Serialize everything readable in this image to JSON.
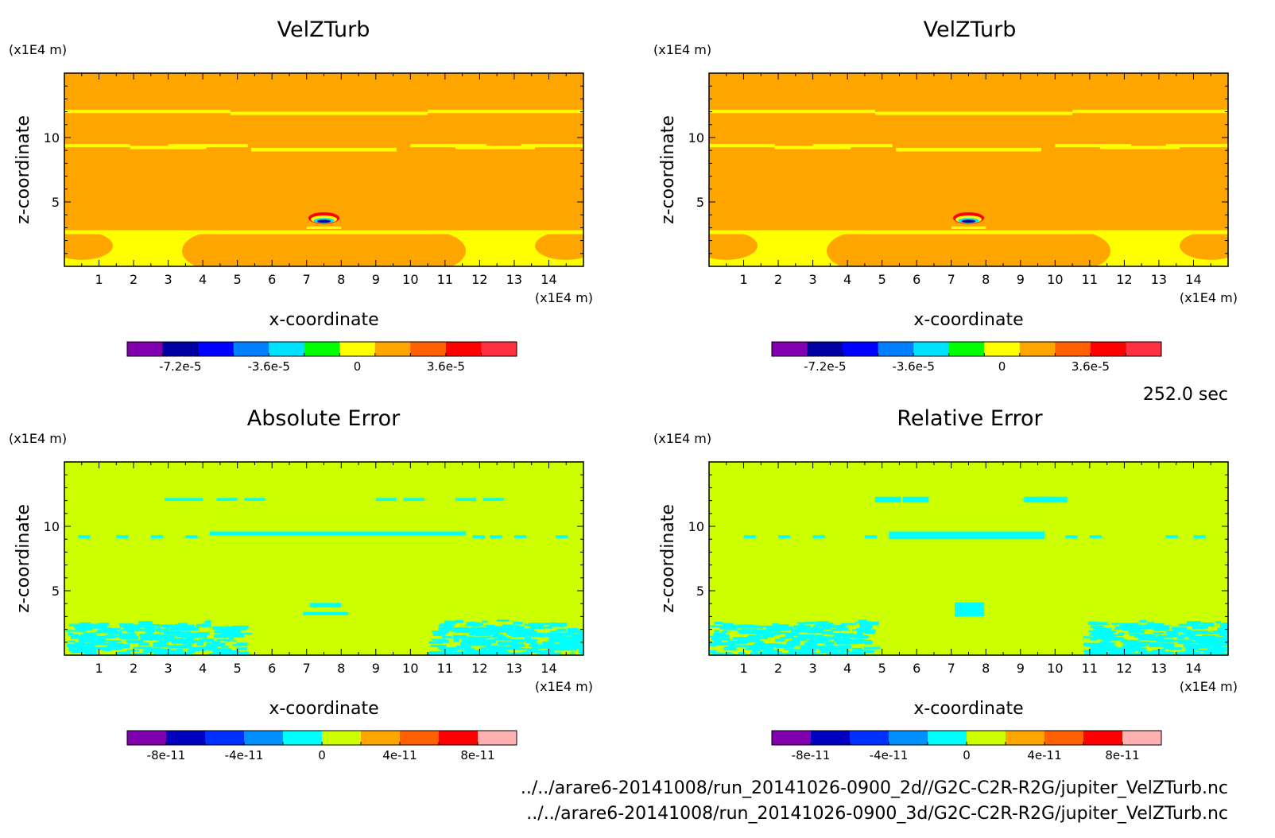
{
  "time_label": "252.0 sec",
  "footer_lines": [
    "../../arare6-20141008/run_20141026-0900_2d//G2C-C2R-R2G/jupiter_VelZTurb.nc",
    "../../arare6-20141008/run_20141026-0900_3d/G2C-C2R-R2G/jupiter_VelZTurb.nc"
  ],
  "colors": {
    "turb_background": "#ffa500",
    "turb_bands": "#ffff00",
    "error_background": "#ccff00",
    "error_speckle": "#00ffff"
  },
  "chart_data": [
    {
      "type": "heatmap",
      "title": "VelZTurb",
      "xlabel": "x-coordinate",
      "ylabel": "z-coordinate",
      "x_unit": "(x1E4 m)",
      "y_unit": "(x1E4 m)",
      "xlim": [
        0,
        15
      ],
      "ylim": [
        0,
        15
      ],
      "x_ticks": [
        1,
        2,
        3,
        4,
        5,
        6,
        7,
        8,
        9,
        10,
        11,
        12,
        13,
        14
      ],
      "y_ticks": [
        5,
        10
      ],
      "field": "turb",
      "colorbar": {
        "colors": [
          "#8000b0",
          "#0000a0",
          "#0000ff",
          "#0080ff",
          "#00e0ff",
          "#00ff00",
          "#ffff00",
          "#ffa500",
          "#ff6000",
          "#ff0000",
          "#ff3040"
        ],
        "tick_labels": [
          "-7.2e-5",
          "-3.6e-5",
          "0",
          "3.6e-5"
        ],
        "tick_positions": [
          1.5,
          4,
          6.5,
          9
        ]
      }
    },
    {
      "type": "heatmap",
      "title": "VelZTurb",
      "xlabel": "x-coordinate",
      "ylabel": "z-coordinate",
      "x_unit": "(x1E4 m)",
      "y_unit": "(x1E4 m)",
      "xlim": [
        0,
        15
      ],
      "ylim": [
        0,
        15
      ],
      "x_ticks": [
        1,
        2,
        3,
        4,
        5,
        6,
        7,
        8,
        9,
        10,
        11,
        12,
        13,
        14
      ],
      "y_ticks": [
        5,
        10
      ],
      "field": "turb",
      "colorbar": {
        "colors": [
          "#8000b0",
          "#0000a0",
          "#0000ff",
          "#0080ff",
          "#00e0ff",
          "#00ff00",
          "#ffff00",
          "#ffa500",
          "#ff6000",
          "#ff0000",
          "#ff3040"
        ],
        "tick_labels": [
          "-7.2e-5",
          "-3.6e-5",
          "0",
          "3.6e-5"
        ],
        "tick_positions": [
          1.5,
          4,
          6.5,
          9
        ]
      }
    },
    {
      "type": "heatmap",
      "title": "Absolute Error",
      "xlabel": "x-coordinate",
      "ylabel": "z-coordinate",
      "x_unit": "(x1E4 m)",
      "y_unit": "(x1E4 m)",
      "xlim": [
        0,
        15
      ],
      "ylim": [
        0,
        15
      ],
      "x_ticks": [
        1,
        2,
        3,
        4,
        5,
        6,
        7,
        8,
        9,
        10,
        11,
        12,
        13,
        14
      ],
      "y_ticks": [
        5,
        10
      ],
      "field": "abs",
      "colorbar": {
        "colors": [
          "#8000b0",
          "#0000c0",
          "#0030ff",
          "#0090ff",
          "#00ffff",
          "#ccff00",
          "#ffa500",
          "#ff6000",
          "#ff0000",
          "#ffb0b0"
        ],
        "tick_labels": [
          "-8e-11",
          "-4e-11",
          "0",
          "4e-11",
          "8e-11"
        ],
        "tick_positions": [
          1,
          3,
          5,
          7,
          9
        ]
      }
    },
    {
      "type": "heatmap",
      "title": "Relative Error",
      "xlabel": "x-coordinate",
      "ylabel": "z-coordinate",
      "x_unit": "(x1E4 m)",
      "y_unit": "(x1E4 m)",
      "xlim": [
        0,
        15
      ],
      "ylim": [
        0,
        15
      ],
      "x_ticks": [
        1,
        2,
        3,
        4,
        5,
        6,
        7,
        8,
        9,
        10,
        11,
        12,
        13,
        14
      ],
      "y_ticks": [
        5,
        10
      ],
      "field": "rel",
      "colorbar": {
        "colors": [
          "#8000b0",
          "#0000c0",
          "#0030ff",
          "#0090ff",
          "#00ffff",
          "#ccff00",
          "#ffa500",
          "#ff6000",
          "#ff0000",
          "#ffb0b0"
        ],
        "tick_labels": [
          "-8e-11",
          "-4e-11",
          "0",
          "4e-11",
          "8e-11"
        ],
        "tick_positions": [
          1,
          3,
          5,
          7,
          9
        ]
      }
    }
  ]
}
